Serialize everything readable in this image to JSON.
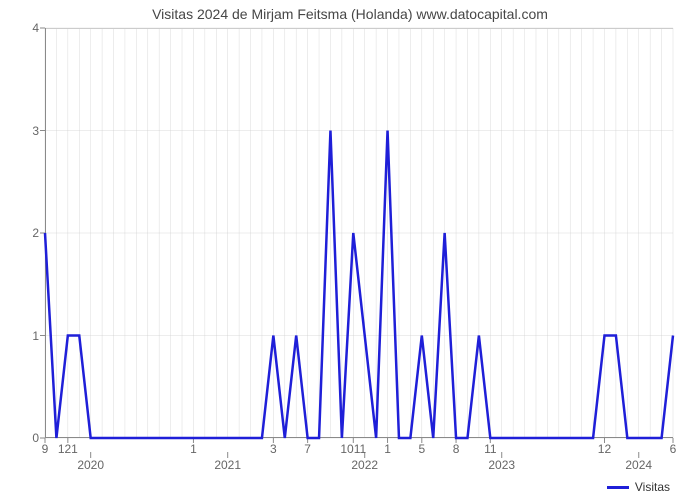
{
  "chart": {
    "type": "line",
    "title": "Visitas 2024 de Mirjam Feitsma (Holanda) www.datocapital.com",
    "title_fontsize": 14,
    "title_color": "#464646",
    "background_color": "#ffffff",
    "plot_top_border_color": "#cccccc",
    "grid_color": "#cccccc",
    "grid_width": 0.35,
    "axis_color": "#8a8a8a",
    "axis_width": 1,
    "series": {
      "name": "Visitas",
      "color": "#1f1fd8",
      "width": 2.5,
      "x": [
        0,
        1,
        2,
        3,
        4,
        5,
        6,
        7,
        8,
        9,
        10,
        11,
        12,
        13,
        14,
        15,
        16,
        17,
        18,
        19,
        20,
        21,
        22,
        23,
        24,
        25,
        26,
        27,
        28,
        29,
        30,
        31,
        32,
        33,
        34,
        35,
        36,
        37,
        38,
        39,
        40,
        41,
        42,
        43,
        44,
        45,
        46,
        47,
        48,
        49,
        50,
        51,
        52,
        53,
        54,
        55
      ],
      "y": [
        2,
        0,
        1,
        1,
        0,
        0,
        0,
        0,
        0,
        0,
        0,
        0,
        0,
        0,
        0,
        0,
        0,
        0,
        0,
        0,
        1,
        0,
        1,
        0,
        0,
        3,
        0,
        2,
        1,
        0,
        3,
        0,
        0,
        1,
        0,
        2,
        0,
        0,
        1,
        0,
        0,
        0,
        0,
        0,
        0,
        0,
        0,
        0,
        0,
        1,
        1,
        0,
        0,
        0,
        0,
        1
      ]
    },
    "yaxis": {
      "min": 0,
      "max": 4,
      "ticks": [
        0,
        1,
        2,
        3,
        4
      ],
      "label_color": "#666666",
      "label_fontsize": 12
    },
    "xaxis": {
      "min": 0,
      "max": 55,
      "month_ticks": [
        {
          "pos": 0,
          "label": "9"
        },
        {
          "pos": 2,
          "label": "121"
        },
        {
          "pos": 13,
          "label": "1"
        },
        {
          "pos": 20,
          "label": "3"
        },
        {
          "pos": 23,
          "label": "7"
        },
        {
          "pos": 27,
          "label": "1011"
        },
        {
          "pos": 30,
          "label": "1"
        },
        {
          "pos": 33,
          "label": "5"
        },
        {
          "pos": 36,
          "label": "8"
        },
        {
          "pos": 39,
          "label": "11"
        },
        {
          "pos": 49,
          "label": "12"
        },
        {
          "pos": 55,
          "label": "6"
        }
      ],
      "year_ticks": [
        {
          "pos": 4,
          "label": "2020"
        },
        {
          "pos": 16,
          "label": "2021"
        },
        {
          "pos": 28,
          "label": "2022"
        },
        {
          "pos": 40,
          "label": "2023"
        },
        {
          "pos": 52,
          "label": "2024"
        }
      ],
      "label_color": "#666666",
      "label_fontsize": 12
    },
    "legend": {
      "label": "Visitas",
      "color": "#1f1fd8",
      "fontsize": 12
    }
  }
}
